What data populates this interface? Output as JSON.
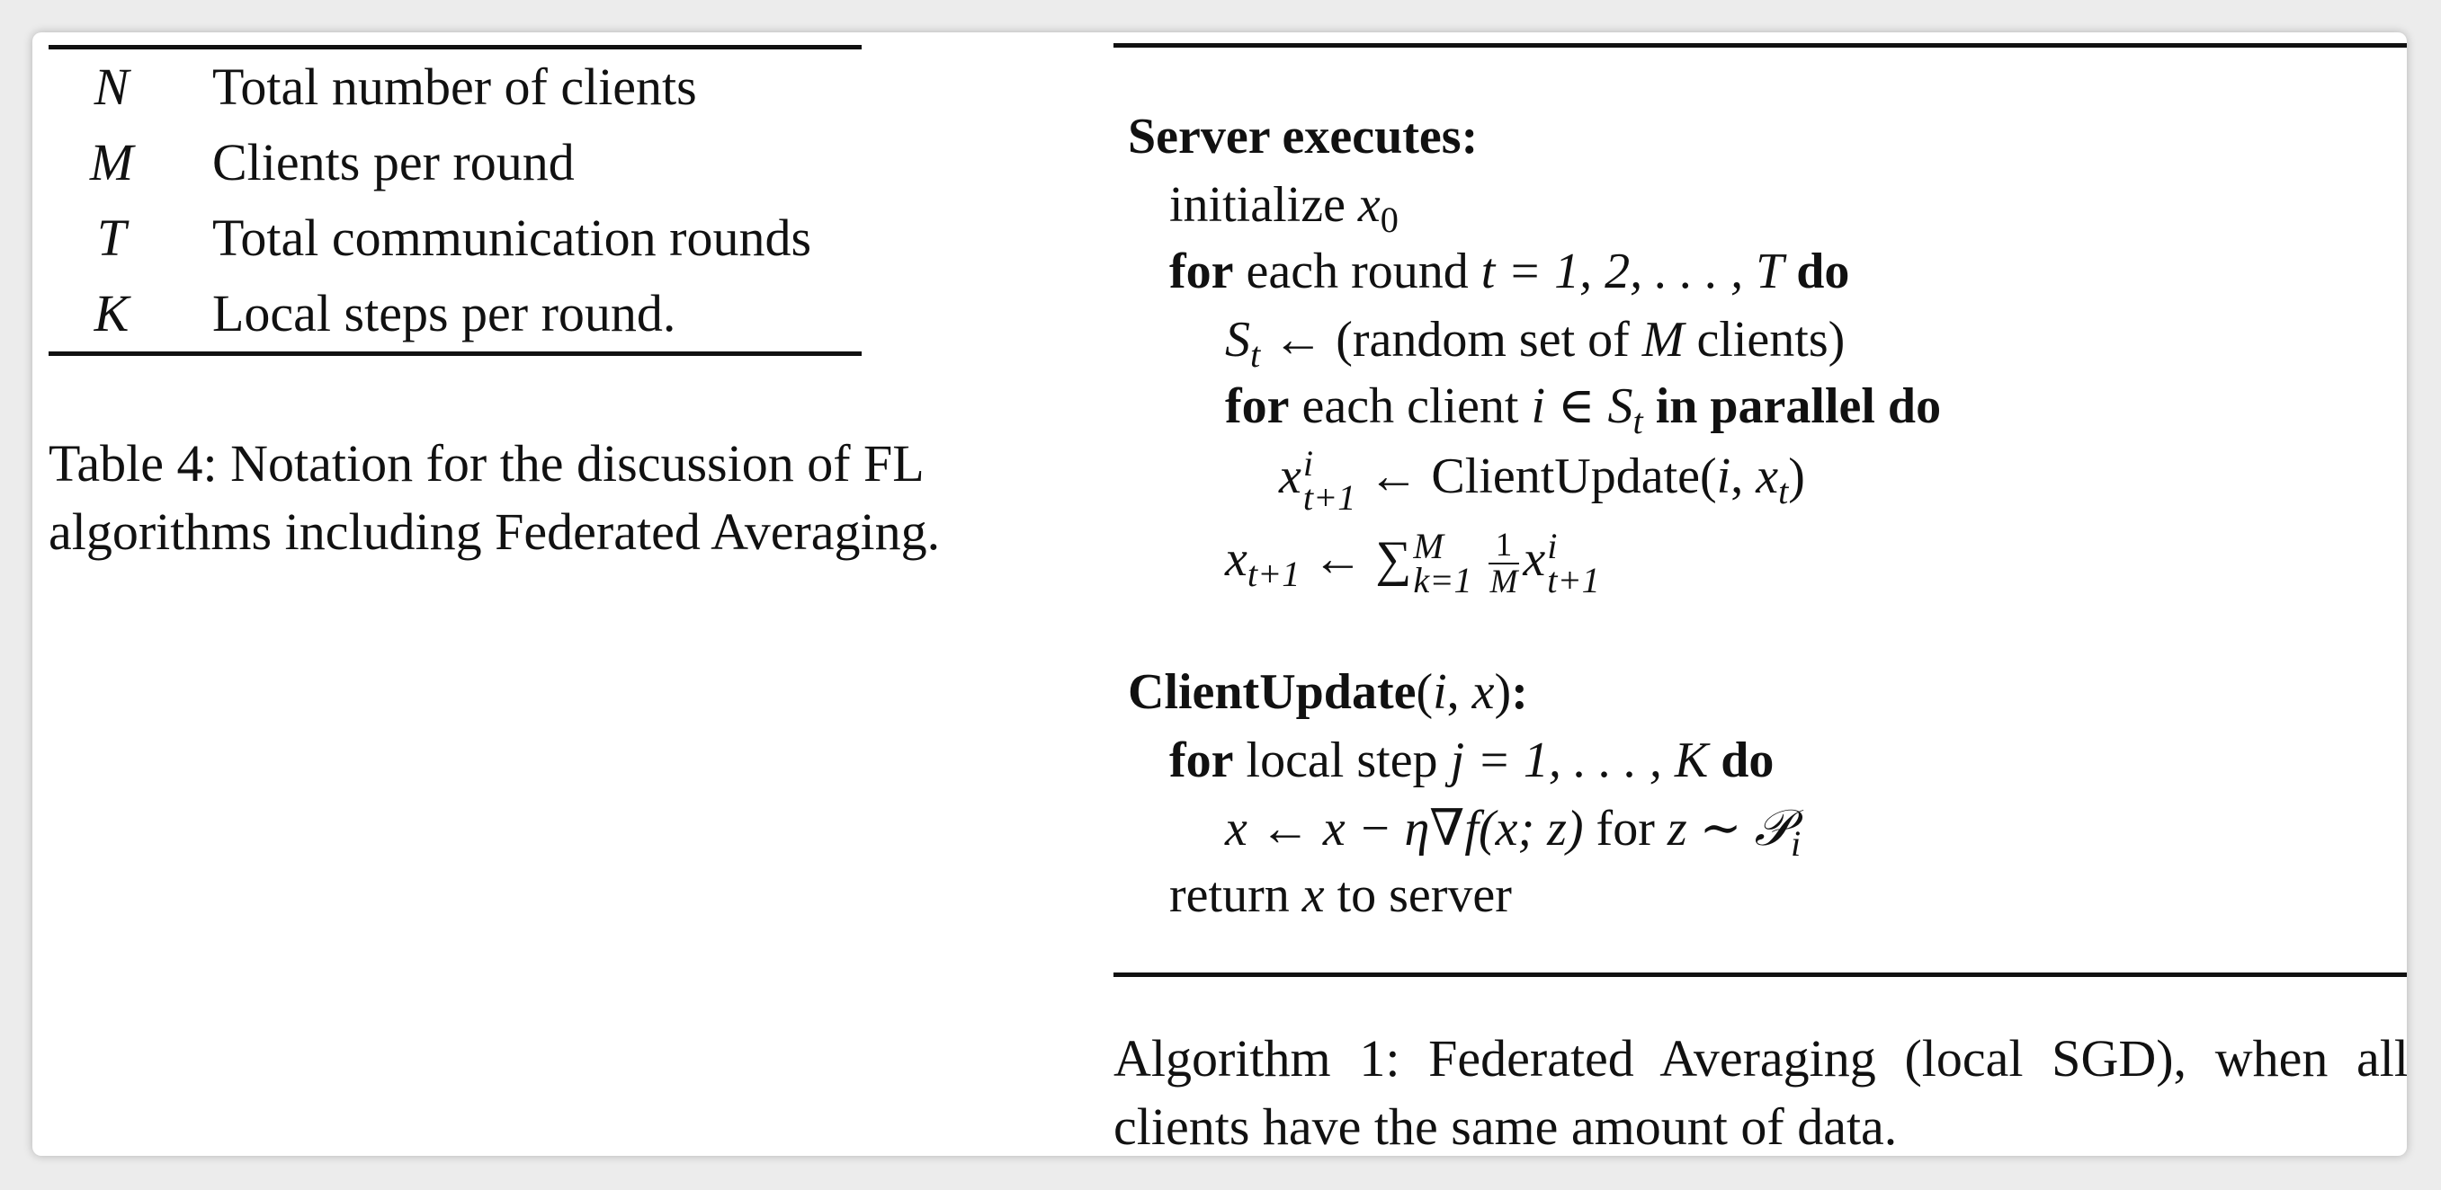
{
  "notation_table": {
    "rows": [
      {
        "symbol": "N",
        "description": "Total number of clients"
      },
      {
        "symbol": "M",
        "description": "Clients per round"
      },
      {
        "symbol": "T",
        "description": "Total communication rounds"
      },
      {
        "symbol": "K",
        "description": "Local steps per round."
      }
    ],
    "caption": "Table 4: Notation for the discussion of FL algorithms including Federated Averaging."
  },
  "algorithm": {
    "server_header": "Server executes:",
    "initialize": "initialize",
    "x0": "x",
    "x0_sub": "0",
    "for_kw": "for",
    "each_round": "each round",
    "round_range": "t = 1, 2, . . . , T",
    "do_kw": "do",
    "st_assign": "(random set of",
    "clients_close": "clients)",
    "each_client": "each client",
    "in_parallel": "in parallel do",
    "client_update_call": "ClientUpdate",
    "sum_sup": "M",
    "sum_sub": "k=1",
    "frac_num": "1",
    "frac_den": "M",
    "client_header": "ClientUpdate",
    "local_step": "local step",
    "j_range": "j = 1, . . . , K",
    "update_rule": "x ← x − η∇f(x; z)",
    "for_z": "for",
    "z_dist": "z ∼ 𝒫",
    "z_dist_sub": "i",
    "return_text": "return",
    "to_server": "to server",
    "caption": "Algorithm 1: Federated Averaging (local SGD), when all clients have the same amount of data."
  }
}
